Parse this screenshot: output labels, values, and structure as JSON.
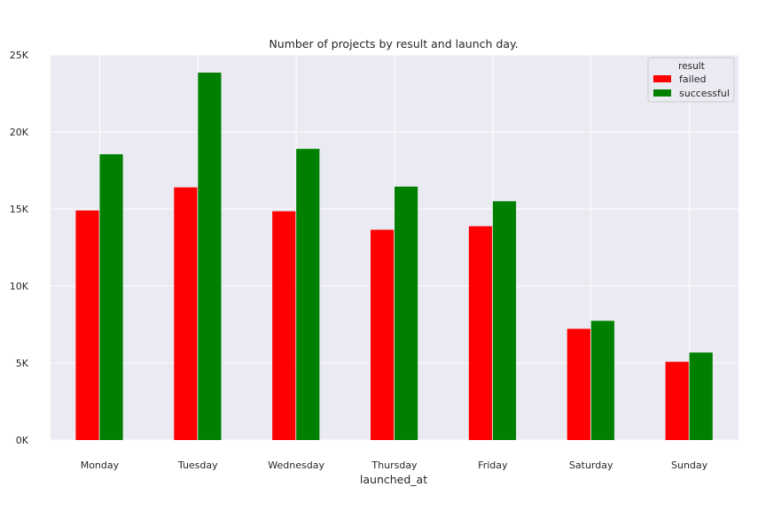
{
  "chart_data": {
    "type": "bar",
    "title": "Number of projects by result and launch day.",
    "xlabel": "launched_at",
    "ylabel": "",
    "categories": [
      "Monday",
      "Tuesday",
      "Wednesday",
      "Thursday",
      "Friday",
      "Saturday",
      "Sunday"
    ],
    "series": [
      {
        "name": "failed",
        "color": "#ff0000",
        "values": [
          14900,
          16400,
          14850,
          13650,
          13880,
          7220,
          5080
        ]
      },
      {
        "name": "successful",
        "color": "#008000",
        "values": [
          18550,
          23850,
          18900,
          16450,
          15500,
          7740,
          5680
        ]
      }
    ],
    "ylim": [
      0,
      25000
    ],
    "yticks": [
      0,
      5000,
      10000,
      15000,
      20000,
      25000
    ],
    "ytick_labels": [
      "0K",
      "5K",
      "10K",
      "15K",
      "20K",
      "25K"
    ],
    "grid": true,
    "legend": {
      "title": "result",
      "placement": "top-right"
    },
    "background": "#eaeaf2"
  }
}
